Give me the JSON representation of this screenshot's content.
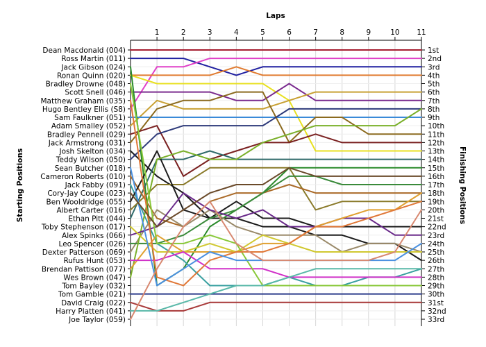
{
  "chart_data": {
    "type": "line",
    "title": "Laps",
    "ylabel_left": "Starting Positions",
    "ylabel_right": "Finishing Positions",
    "x": [
      0,
      1,
      2,
      3,
      4,
      5,
      6,
      7,
      8,
      9,
      10,
      11
    ],
    "x_tick_labels": [
      "1",
      "2",
      "3",
      "4",
      "5",
      "6",
      "7",
      "8",
      "9",
      "10",
      "11"
    ],
    "y_range": [
      1,
      33
    ],
    "starting_labels": [
      "Dean Macdonald (004)",
      "Ross Martin (011)",
      "Jack Gibson (024)",
      "Ronan Quinn (020)",
      "Bradley Drowne (048)",
      "Scott Snell (046)",
      "Matthew Graham (035)",
      "Hugo Bentley Ellis (S8)",
      "Sam Faulkner (051)",
      "Adam Smalley (052)",
      "Bradley Pennell (029)",
      "Jack Armstrong (031)",
      "Josh Skelton (034)",
      "Teddy Wilson (050)",
      "Sean Butcher (018)",
      "Cameron Roberts (010)",
      "Jack Fabby (091)",
      "Cory-Jay Coupe (023)",
      "Ben Wooldridge (055)",
      "Albert Carter (016)",
      "Ethan Pitt (044)",
      "Toby Stephenson (017)",
      "Alex Spinks (066)",
      "Leo Spencer (026)",
      "Dexter Patterson (069)",
      "Rufus Hunt (053)",
      "Brendan Pattison (077)",
      "Wes Brown (047)",
      "Tom Bayley (032)",
      "Tom Gamble (021)",
      "David Craig (022)",
      "Harry Platten (041)",
      "Joe Taylor (059)"
    ],
    "finishing_labels": [
      "1st",
      "2nd",
      "3rd",
      "4th",
      "5th",
      "6th",
      "7th",
      "8th",
      "9th",
      "10th",
      "11th",
      "12th",
      "13th",
      "14th",
      "15th",
      "16th",
      "17th",
      "18th",
      "19th",
      "20th",
      "21st",
      "22nd",
      "23rd",
      "24th",
      "25th",
      "26th",
      "27th",
      "28th",
      "29th",
      "30th",
      "31st",
      "32nd",
      "33rd"
    ],
    "series": [
      {
        "color": "#a51c30",
        "values": [
          1,
          1,
          1,
          1,
          1,
          1,
          1,
          1,
          1,
          1,
          1,
          1
        ]
      },
      {
        "color": "#1f1fa0",
        "values": [
          2,
          2,
          2,
          3,
          4,
          3,
          3,
          3,
          3,
          3,
          3,
          3
        ]
      },
      {
        "color": "#e040c8",
        "values": [
          8,
          3,
          3,
          2,
          2,
          2,
          2,
          2,
          2,
          2,
          2,
          2
        ]
      },
      {
        "color": "#e07a2e",
        "values": [
          4,
          4,
          4,
          4,
          3,
          4,
          4,
          4,
          4,
          4,
          4,
          4
        ]
      },
      {
        "color": "#e8e020",
        "values": [
          4,
          5,
          5,
          5,
          5,
          5,
          7,
          13,
          13,
          13,
          13,
          13
        ]
      },
      {
        "color": "#7a2a8e",
        "values": [
          6,
          6,
          6,
          6,
          7,
          7,
          5,
          7,
          7,
          7,
          7,
          7
        ]
      },
      {
        "color": "#1a1a1a",
        "values": [
          13,
          16,
          18,
          21,
          21,
          22,
          22,
          23,
          23,
          24,
          24,
          26
        ]
      },
      {
        "color": "#c8a032",
        "values": [
          10,
          7,
          8,
          8,
          8,
          8,
          7,
          6,
          6,
          6,
          6,
          6
        ]
      },
      {
        "color": "#3a8ad8",
        "values": [
          9,
          9,
          9,
          9,
          9,
          9,
          9,
          9,
          9,
          9,
          9,
          9
        ]
      },
      {
        "color": "#8b6a1e",
        "values": [
          12,
          8,
          7,
          7,
          6,
          6,
          12,
          9,
          9,
          11,
          11,
          11
        ]
      },
      {
        "color": "#7a2020",
        "values": [
          11,
          10,
          16,
          14,
          13,
          12,
          12,
          11,
          12,
          12,
          12,
          12
        ]
      },
      {
        "color": "#2a8a2a",
        "values": [
          3,
          29,
          27,
          22,
          20,
          18,
          15,
          15,
          15,
          15,
          15,
          15
        ]
      },
      {
        "color": "#2e3a7a",
        "values": [
          14,
          11,
          10,
          10,
          10,
          10,
          8,
          8,
          8,
          8,
          8,
          8
        ]
      },
      {
        "color": "#2e6a6a",
        "values": [
          21,
          14,
          14,
          13,
          14,
          14,
          14,
          14,
          14,
          14,
          14,
          14
        ]
      },
      {
        "color": "#3aa0a0",
        "values": [
          17,
          24,
          26,
          29,
          29,
          29,
          28,
          29,
          29,
          28,
          28,
          27
        ]
      },
      {
        "color": "#2a3a8a",
        "values": [
          30,
          30,
          30,
          30,
          30,
          30,
          30,
          30,
          30,
          30,
          30,
          30
        ]
      },
      {
        "color": "#8a7a2a",
        "values": [
          20,
          17,
          17,
          15,
          15,
          15,
          15,
          20,
          19,
          19,
          19,
          19
        ]
      },
      {
        "color": "#aa6a28",
        "values": [
          16,
          21,
          22,
          19,
          18,
          18,
          17,
          18,
          18,
          18,
          18,
          18
        ]
      },
      {
        "color": "#1c1c1c",
        "values": [
          19,
          13,
          20,
          21,
          19,
          21,
          21,
          22,
          22,
          22,
          22,
          22
        ]
      },
      {
        "color": "#9a8a6a",
        "values": [
          25,
          20,
          22,
          20,
          22,
          23,
          23,
          23,
          25,
          24,
          24,
          25
        ]
      },
      {
        "color": "#3a8a3a",
        "values": [
          24,
          24,
          23,
          21,
          20,
          18,
          16,
          16,
          17,
          17,
          17,
          17
        ]
      },
      {
        "color": "#7ab02a",
        "values": [
          28,
          14,
          13,
          14,
          14,
          12,
          11,
          10,
          10,
          10,
          10,
          8
        ]
      },
      {
        "color": "#6a2a8a",
        "values": [
          23,
          22,
          18,
          20,
          21,
          20,
          22,
          22,
          21,
          21,
          23,
          23
        ]
      },
      {
        "color": "#e0a030",
        "values": [
          27,
          23,
          25,
          25,
          25,
          24,
          24,
          22,
          21,
          20,
          20,
          18
        ]
      },
      {
        "color": "#d0c830",
        "values": [
          22,
          25,
          25,
          24,
          25,
          23,
          24,
          25,
          25,
          25,
          25,
          25
        ]
      },
      {
        "color": "#d030c8",
        "values": [
          26,
          26,
          25,
          27,
          27,
          27,
          28,
          28,
          28,
          28,
          28,
          28
        ]
      },
      {
        "color": "#88c838",
        "values": [
          5,
          24,
          24,
          23,
          24,
          29,
          29,
          29,
          29,
          29,
          29,
          29
        ]
      },
      {
        "color": "#a83838",
        "values": [
          31,
          32,
          32,
          31,
          31,
          31,
          31,
          31,
          31,
          31,
          31,
          31
        ]
      },
      {
        "color": "#58b8a8",
        "values": [
          32,
          32,
          31,
          30,
          29,
          29,
          28,
          27,
          27,
          27,
          27,
          27
        ]
      },
      {
        "color": "#e07838",
        "values": [
          7,
          28,
          29,
          26,
          25,
          25,
          24,
          22,
          22,
          21,
          20,
          19
        ]
      },
      {
        "color": "#4a90e0",
        "values": [
          15,
          29,
          27,
          25,
          26,
          26,
          26,
          26,
          26,
          26,
          26,
          24
        ]
      },
      {
        "color": "#6a4a2a",
        "values": [
          18,
          22,
          20,
          18,
          17,
          17,
          15,
          16,
          16,
          16,
          16,
          16
        ]
      },
      {
        "color": "#d88870",
        "values": [
          33,
          27,
          22,
          19,
          24,
          26,
          26,
          26,
          26,
          26,
          25,
          20
        ]
      }
    ],
    "grid": true
  }
}
